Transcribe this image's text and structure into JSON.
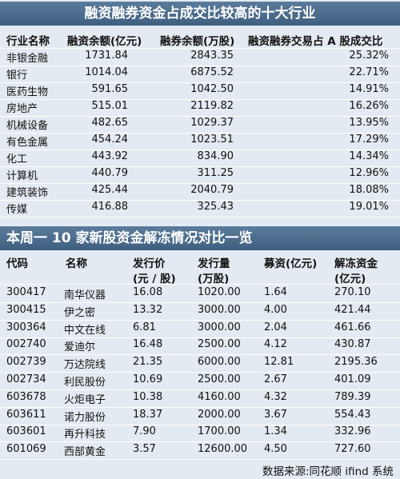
{
  "table1": {
    "title": "融资融券资金占成交比较高的十大行业",
    "header": [
      "行业名称",
      "融资余额(亿元)",
      "融券余额(万股)",
      "融资融券交易占 A 股成交比"
    ],
    "rows": [
      [
        "非银金融",
        "1731.84",
        "2843.35",
        "25.32%"
      ],
      [
        "银行",
        "1014.04",
        "6875.52",
        "22.71%"
      ],
      [
        "医药生物",
        "591.65",
        "1042.50",
        "14.91%"
      ],
      [
        "房地产",
        "515.01",
        "2119.82",
        "16.26%"
      ],
      [
        "机械设备",
        "482.65",
        "1029.37",
        "13.95%"
      ],
      [
        "有色金属",
        "454.24",
        "1023.51",
        "17.29%"
      ],
      [
        "化工",
        "443.92",
        "834.90",
        "14.34%"
      ],
      [
        "计算机",
        "440.79",
        "311.25",
        "12.96%"
      ],
      [
        "建筑装饰",
        "425.44",
        "2040.79",
        "18.08%"
      ],
      [
        "传媒",
        "416.88",
        "325.43",
        "19.01%"
      ]
    ]
  },
  "table2": {
    "title": "本周一 10 家新股资金解冻情况对比一览",
    "header": [
      [
        "代码"
      ],
      [
        "名称"
      ],
      [
        "发行价",
        "(元 / 股)"
      ],
      [
        "发行量",
        "(万股)"
      ],
      [
        "募资(亿元)"
      ],
      [
        "解冻资金",
        "(亿元)"
      ]
    ],
    "rows": [
      [
        "300417",
        "南华仪器",
        "16.08",
        "1020.00",
        "1.64",
        "270.10"
      ],
      [
        "300415",
        "伊之密",
        "13.32",
        "3000.00",
        "4.00",
        "421.44"
      ],
      [
        "300364",
        "中文在线",
        "6.81",
        "3000.00",
        "2.04",
        "461.66"
      ],
      [
        "002740",
        "爱迪尔",
        "16.48",
        "2500.00",
        "4.12",
        "430.87"
      ],
      [
        "002739",
        "万达院线",
        "21.35",
        "6000.00",
        "12.81",
        "2195.36"
      ],
      [
        "002734",
        "利民股份",
        "10.69",
        "2500.00",
        "2.67",
        "401.09"
      ],
      [
        "603678",
        "火炬电子",
        "10.38",
        "4160.00",
        "4.32",
        "789.39"
      ],
      [
        "603611",
        "诺力股份",
        "18.37",
        "2000.00",
        "3.67",
        "554.43"
      ],
      [
        "603601",
        "再升科技",
        "7.90",
        "1700.00",
        "1.34",
        "332.96"
      ],
      [
        "601069",
        "西部黄金",
        "3.57",
        "12600.00",
        "4.50",
        "727.60"
      ]
    ]
  },
  "footer": "数据来源:同花顺 ifind 系统"
}
